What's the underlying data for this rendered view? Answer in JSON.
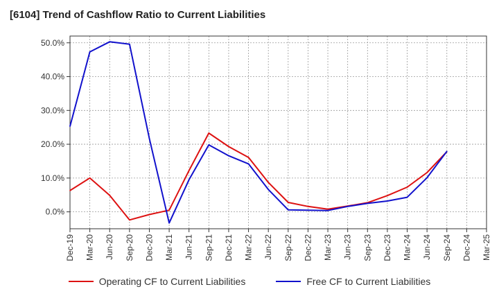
{
  "chart_data": {
    "type": "line",
    "title": "[6104]  Trend of Cashflow Ratio to Current Liabilities",
    "xlabel": "",
    "ylabel": "",
    "x": [
      "Dec-19",
      "Mar-20",
      "Jun-20",
      "Sep-20",
      "Dec-20",
      "Mar-21",
      "Jun-21",
      "Sep-21",
      "Dec-21",
      "Mar-22",
      "Jun-22",
      "Sep-22",
      "Dec-22",
      "Mar-23",
      "Jun-23",
      "Sep-23",
      "Dec-23",
      "Mar-24",
      "Jun-24",
      "Sep-24",
      "Dec-24",
      "Mar-25"
    ],
    "y_ticks": [
      "0.0%",
      "10.0%",
      "20.0%",
      "30.0%",
      "40.0%",
      "50.0%"
    ],
    "y_tick_values": [
      0,
      10,
      20,
      30,
      40,
      50
    ],
    "ylim": [
      -5,
      52
    ],
    "grid": true,
    "legend_position": "bottom",
    "series": [
      {
        "name": "Operating CF to Current Liabilities",
        "color": "#dd1111",
        "values": [
          6.3,
          10.0,
          4.9,
          -2.4,
          -0.8,
          0.5,
          12.2,
          23.3,
          19.3,
          16.1,
          8.7,
          2.8,
          1.6,
          0.8,
          1.7,
          2.7,
          4.8,
          7.3,
          11.6,
          17.8,
          null,
          null
        ]
      },
      {
        "name": "Free CF to Current Liabilities",
        "color": "#1111cc",
        "values": [
          25.3,
          47.3,
          50.3,
          49.6,
          21.7,
          -3.3,
          9.5,
          19.8,
          16.6,
          14.2,
          6.6,
          0.6,
          0.5,
          0.4,
          1.6,
          2.5,
          3.2,
          4.3,
          10.1,
          17.9,
          null,
          null
        ]
      }
    ]
  }
}
